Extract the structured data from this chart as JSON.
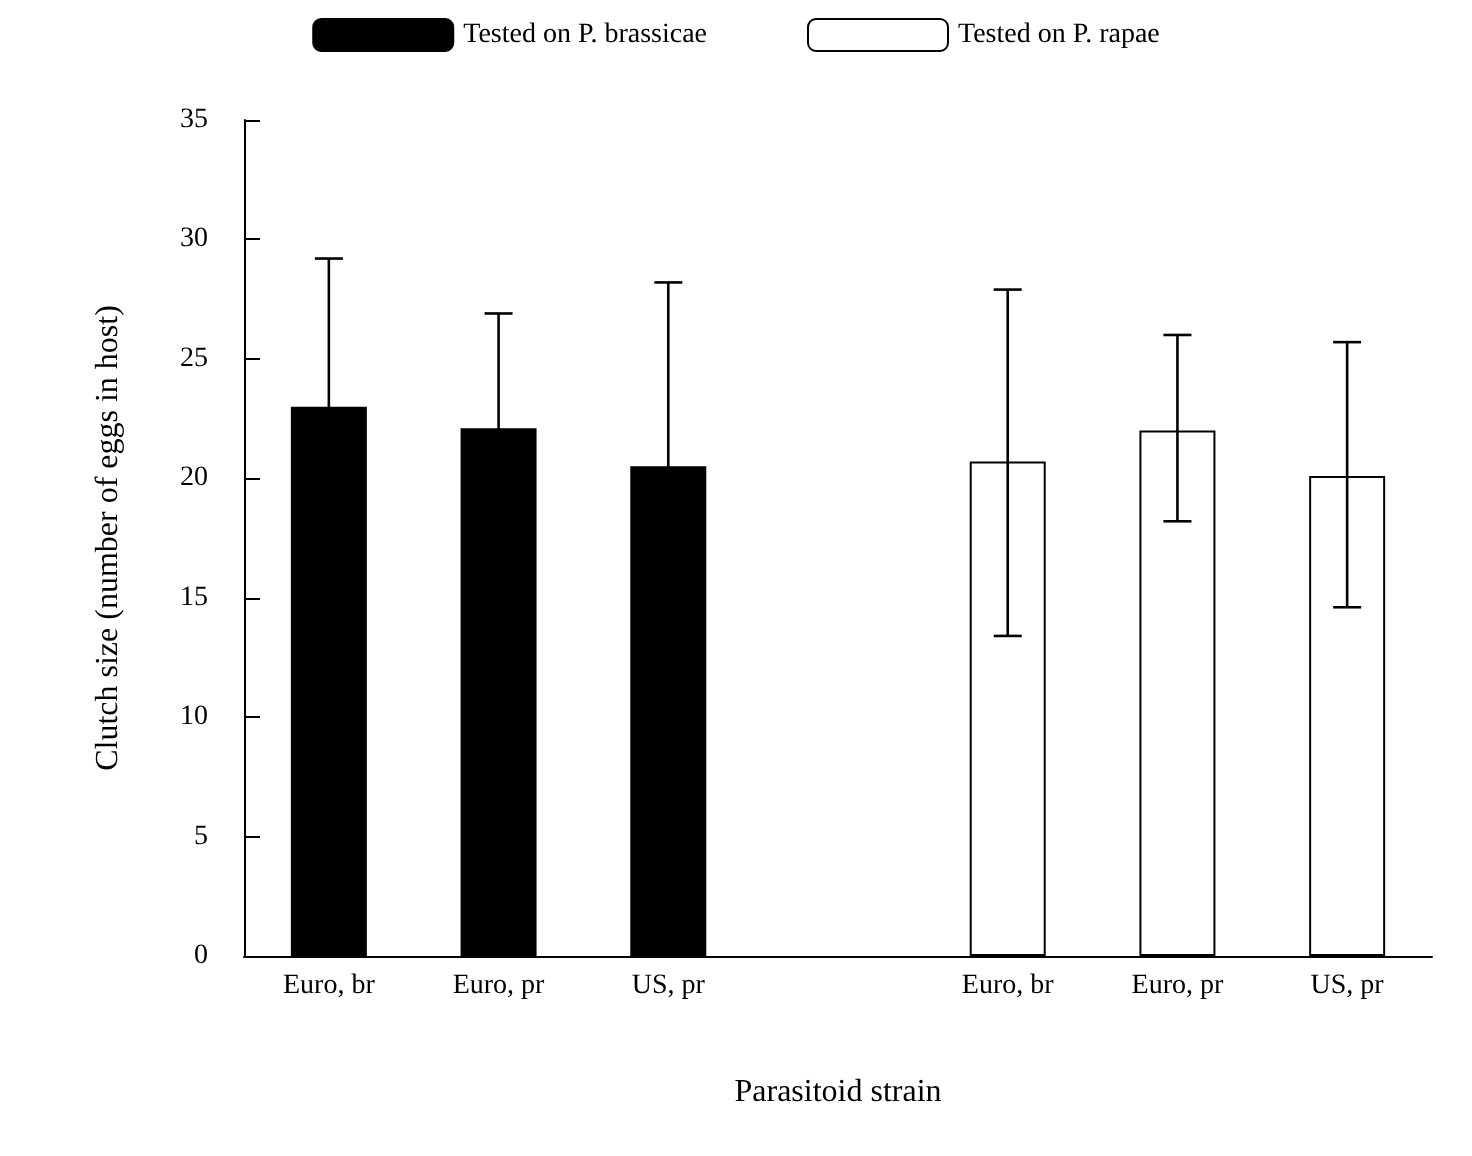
{
  "chart_data": {
    "type": "bar",
    "xlabel": "Parasitoid strain",
    "ylabel": "Clutch size (number of eggs in host)",
    "categories": [
      "Euro, br",
      "Euro, pr",
      "US, pr",
      null,
      "Euro, br",
      "Euro, pr",
      "US, pr"
    ],
    "series": [
      {
        "name": "Tested on P. brassicae",
        "color": "#000000",
        "values": [
          23.0,
          22.1,
          20.5,
          null,
          null,
          null,
          null
        ],
        "errors": [
          6.2,
          4.8,
          7.7,
          null,
          null,
          null,
          null
        ]
      },
      {
        "name": "Tested on P. rapae",
        "color": "#ffffff",
        "values": [
          null,
          null,
          null,
          null,
          20.7,
          22.0,
          20.1
        ],
        "errors": [
          null,
          null,
          null,
          null,
          [
            13.4,
            27.9
          ],
          [
            18.2,
            26.0
          ],
          [
            14.6,
            25.7
          ]
        ]
      }
    ],
    "ylim": [
      0,
      35
    ],
    "yticks": [
      0,
      5,
      10,
      15,
      20,
      25,
      30,
      35
    ],
    "grid": false,
    "legend": "top"
  }
}
